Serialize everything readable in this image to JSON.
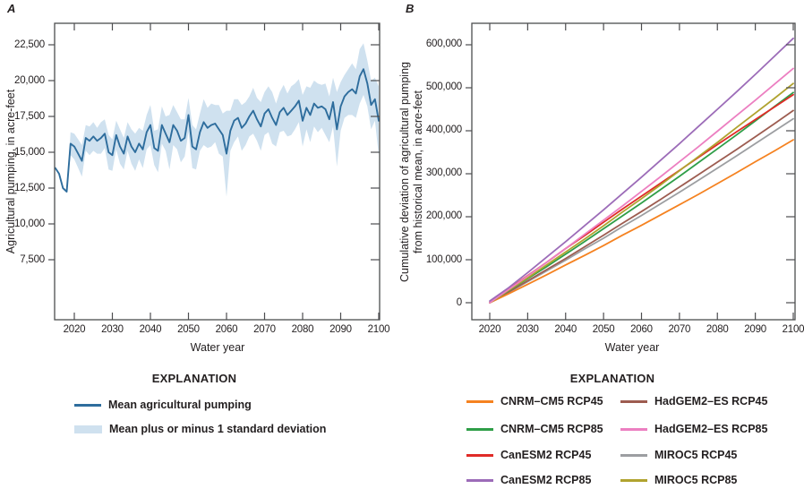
{
  "chart_data": [
    {
      "type": "line",
      "panel": "A",
      "xlabel": "Water year",
      "ylabel": "Agricultural pumping, in acre-feet",
      "explanation_title": "EXPLANATION",
      "x_tick_values": [
        2020,
        2030,
        2040,
        2050,
        2060,
        2070,
        2080,
        2090,
        2100
      ],
      "x_tick_labels": [
        "2020",
        "2030",
        "2040",
        "2050",
        "2060",
        "2070",
        "2080",
        "2090",
        "2100"
      ],
      "y_tick_values": [
        7500,
        10000,
        12500,
        15000,
        17500,
        20000,
        22500
      ],
      "y_tick_labels": [
        "7,500",
        "10,000",
        "12,500",
        "15,000",
        "17,500",
        "20,000",
        "22,500"
      ],
      "xlim": [
        2015,
        2100
      ],
      "ylim": [
        3300,
        24000
      ],
      "grid": false,
      "line_color": "#2e6d9d",
      "band_color": "#cfe1ef",
      "frame_color": "#4c4d4f",
      "years_start": 2015,
      "mean": [
        13900,
        13500,
        12500,
        12250,
        15600,
        15400,
        14900,
        14400,
        16000,
        15800,
        16100,
        15800,
        16000,
        16300,
        15000,
        14800,
        16200,
        15400,
        14900,
        16100,
        15400,
        15000,
        15600,
        15200,
        16400,
        16900,
        15300,
        15100,
        16900,
        16300,
        15700,
        16900,
        16500,
        15800,
        16000,
        17600,
        15400,
        15200,
        16400,
        17100,
        16700,
        16900,
        17000,
        16600,
        16200,
        14900,
        16500,
        17200,
        17400,
        16700,
        17000,
        17500,
        17900,
        17300,
        16800,
        17700,
        18000,
        17400,
        16900,
        17800,
        18100,
        17600,
        17900,
        18200,
        18600,
        17200,
        18100,
        17600,
        18400,
        18100,
        18200,
        18000,
        17300,
        18500,
        16600,
        18200,
        18900,
        19200,
        19400,
        19100,
        20300,
        20800,
        19800,
        18300,
        18700,
        17200
      ],
      "sd": [
        0,
        0,
        0,
        0,
        800,
        900,
        1000,
        1100,
        900,
        1000,
        1000,
        900,
        1100,
        1000,
        1200,
        1100,
        1000,
        1200,
        1100,
        1000,
        1200,
        1300,
        1100,
        1300,
        1200,
        1400,
        1200,
        1500,
        1300,
        1200,
        1900,
        1400,
        1300,
        1500,
        1300,
        1200,
        1500,
        1400,
        1300,
        1600,
        1400,
        1500,
        1300,
        1700,
        1500,
        3000,
        1400,
        1500,
        1300,
        1600,
        1500,
        1400,
        1600,
        1500,
        1700,
        1500,
        1600,
        1800,
        1500,
        1400,
        1600,
        1500,
        1700,
        1600,
        1500,
        1800,
        1500,
        1900,
        1600,
        1700,
        1500,
        1800,
        1600,
        1700,
        2600,
        1700,
        1500,
        1600,
        1800,
        1700,
        1900,
        1800,
        1600,
        1700,
        1500,
        2400
      ],
      "legend": [
        {
          "label": "Mean agricultural pumping",
          "swatch": "line"
        },
        {
          "label": "Mean plus or minus 1 standard deviation",
          "swatch": "band"
        }
      ]
    },
    {
      "type": "line",
      "panel": "B",
      "xlabel": "Water year",
      "ylabel_lines": [
        "Cumulative deviation of agricultural pumping",
        "from historical mean, in acre-feet"
      ],
      "explanation_title": "EXPLANATION",
      "x_tick_values": [
        2020,
        2030,
        2040,
        2050,
        2060,
        2070,
        2080,
        2090,
        2100
      ],
      "x_tick_labels": [
        "2020",
        "2030",
        "2040",
        "2050",
        "2060",
        "2070",
        "2080",
        "2090",
        "2100"
      ],
      "y_tick_values": [
        0,
        100000,
        200000,
        300000,
        400000,
        500000,
        600000
      ],
      "y_tick_labels": [
        "0",
        "100,000",
        "200,000",
        "300,000",
        "400,000",
        "500,000",
        "600,000"
      ],
      "xlim": [
        2015,
        2100
      ],
      "ylim": [
        -40000,
        650000
      ],
      "grid": false,
      "frame_color": "#4c4d4f",
      "x": [
        2020,
        2025,
        2030,
        2035,
        2040,
        2045,
        2050,
        2055,
        2060,
        2065,
        2070,
        2075,
        2080,
        2085,
        2090,
        2095,
        2100
      ],
      "series": [
        {
          "name": "CNRM–CM5 RCP45",
          "color": "#f58220",
          "values": [
            0,
            21000,
            43000,
            65000,
            88000,
            110000,
            133000,
            157000,
            180000,
            204000,
            228000,
            252000,
            277000,
            302000,
            328000,
            353000,
            379000
          ]
        },
        {
          "name": "CNRM–CM5 RCP85",
          "color": "#2f9e48",
          "values": [
            0,
            28000,
            56000,
            84000,
            113000,
            142000,
            172000,
            202000,
            232000,
            263000,
            294000,
            326000,
            358000,
            390000,
            423000,
            456000,
            489000
          ]
        },
        {
          "name": "CanESM2 RCP45",
          "color": "#e02b27",
          "values": [
            0,
            32000,
            63000,
            94000,
            126000,
            156000,
            187000,
            218000,
            248000,
            278000,
            308000,
            338000,
            368000,
            397000,
            426000,
            455000,
            484000
          ]
        },
        {
          "name": "CanESM2 RCP85",
          "color": "#9c6cb8",
          "values": [
            4000,
            35000,
            70000,
            106000,
            142000,
            179000,
            216000,
            254000,
            292000,
            331000,
            370000,
            410000,
            450000,
            490000,
            531000,
            573000,
            615000
          ]
        },
        {
          "name": "HadGEM2–ES RCP45",
          "color": "#9d5c50",
          "values": [
            0,
            25000,
            51000,
            77000,
            103000,
            130000,
            157000,
            185000,
            212000,
            240000,
            269000,
            298000,
            327000,
            356000,
            386000,
            416000,
            447000
          ]
        },
        {
          "name": "HadGEM2–ES RCP85",
          "color": "#ec7fc1",
          "values": [
            0,
            31000,
            62000,
            94000,
            126000,
            159000,
            192000,
            225000,
            259000,
            293000,
            328000,
            363000,
            399000,
            435000,
            471000,
            508000,
            545000
          ]
        },
        {
          "name": "MIROC5 RCP45",
          "color": "#9c9ea1",
          "values": [
            0,
            24000,
            49000,
            74000,
            99000,
            125000,
            150000,
            177000,
            203000,
            230000,
            257000,
            285000,
            313000,
            341000,
            370000,
            399000,
            428000
          ]
        },
        {
          "name": "MIROC5 RCP85",
          "color": "#b0a32f",
          "values": [
            0,
            29000,
            58000,
            88000,
            118000,
            148000,
            179000,
            211000,
            242000,
            274000,
            307000,
            340000,
            373000,
            407000,
            441000,
            475000,
            510000
          ]
        }
      ],
      "legend_columns": [
        [
          0,
          1,
          2,
          3
        ],
        [
          4,
          5,
          6,
          7
        ]
      ],
      "draw_order": [
        6,
        4,
        0,
        1,
        2,
        7,
        5,
        3
      ]
    }
  ]
}
